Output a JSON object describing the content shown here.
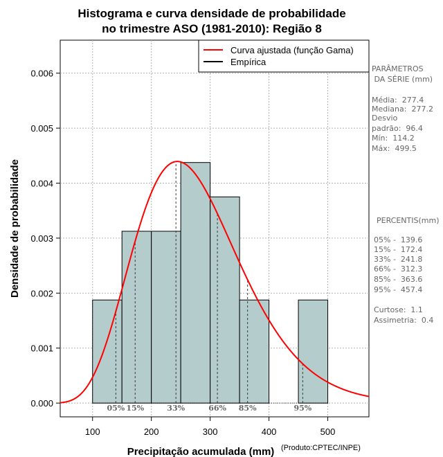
{
  "chart_data": {
    "type": "bar",
    "title_line1": "Histograma e curva densidade de probabilidade",
    "title_line2": "no trimestre ASO (1981-2010): Região 8",
    "xlabel": "Precipitação acumulada (mm)",
    "ylabel": "Densidade de probabilidade",
    "credit": "(Produto:CPTEC/INPE)",
    "xlim": [
      45,
      570
    ],
    "ylim": [
      -0.00025,
      0.0066
    ],
    "x_ticks": [
      100,
      200,
      300,
      400,
      500
    ],
    "y_ticks": [
      0.0,
      0.001,
      0.002,
      0.003,
      0.004,
      0.005,
      0.006
    ],
    "x_tick_labels": [
      "100",
      "200",
      "300",
      "400",
      "500"
    ],
    "y_tick_labels": [
      "0.000",
      "0.001",
      "0.002",
      "0.003",
      "0.004",
      "0.005",
      "0.006"
    ],
    "bins": [
      {
        "x0": 100,
        "x1": 150,
        "density": 0.001875
      },
      {
        "x0": 150,
        "x1": 200,
        "density": 0.003125
      },
      {
        "x0": 200,
        "x1": 250,
        "density": 0.003125
      },
      {
        "x0": 250,
        "x1": 300,
        "density": 0.004375
      },
      {
        "x0": 300,
        "x1": 350,
        "density": 0.00375
      },
      {
        "x0": 350,
        "x1": 400,
        "density": 0.001875
      },
      {
        "x0": 400,
        "x1": 450,
        "density": 0.0
      },
      {
        "x0": 450,
        "x1": 500,
        "density": 0.001875
      }
    ],
    "gamma_fit": {
      "shape": 8.4,
      "scale": 33.0
    },
    "percentile_lines": [
      {
        "label": "05%",
        "value": 139.6
      },
      {
        "label": "15%",
        "value": 172.4
      },
      {
        "label": "33%",
        "value": 241.8
      },
      {
        "label": "66%",
        "value": 312.3
      },
      {
        "label": "85%",
        "value": 363.6
      },
      {
        "label": "95%",
        "value": 457.4
      }
    ],
    "legend": [
      {
        "label": "Curva ajustada (função Gama)",
        "color": "#ff0000"
      },
      {
        "label": "Empírica",
        "color": "#000000"
      }
    ],
    "colors": {
      "bar_fill": "#b4cccc",
      "curve": "#ff0000",
      "grid": "#b0b0b0",
      "side_text": "#666666"
    }
  },
  "side_panel": {
    "params_title_1": "PARÂMETROS",
    "params_title_2": " DA SÉRIE (mm)",
    "params": [
      "Média:  277.4",
      "Mediana:  277.2",
      "Desvio",
      "padrão:  96.4",
      "Mín:  114.2",
      "Máx:  499.5"
    ],
    "percentis_title": "PERCENTIS(mm)",
    "percentis": [
      "05% -  139.6",
      "15% -  172.4",
      "33% -  241.8",
      "66% -  312.3",
      "85% -  363.6",
      "95% -  457.4"
    ],
    "curtose": "Curtose:  1.1",
    "assimetria": "Assimetria:  0.4"
  }
}
